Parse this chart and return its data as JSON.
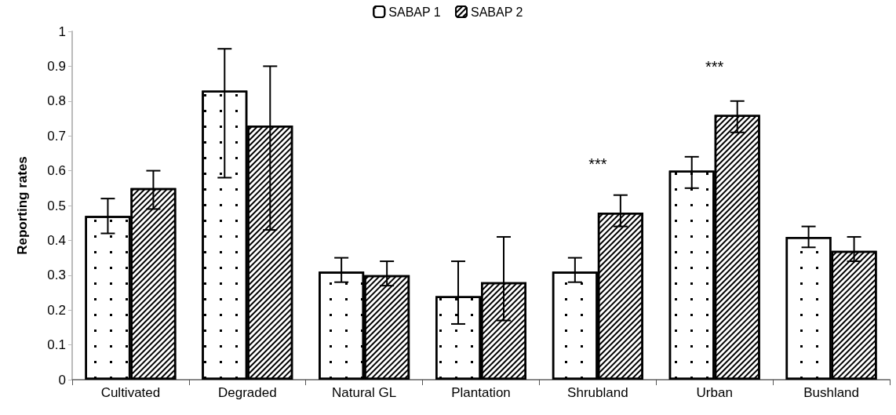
{
  "chart_data": {
    "type": "bar",
    "ylabel": "Reporting rates",
    "categories": [
      "Cultivated",
      "Degraded",
      "Natural GL",
      "Plantation",
      "Shrubland",
      "Urban",
      "Bushland"
    ],
    "series": [
      {
        "name": "SABAP 1",
        "color": "#ffffff",
        "values": [
          0.47,
          0.83,
          0.31,
          0.24,
          0.31,
          0.6,
          0.41
        ],
        "errors": [
          [
            0.42,
            0.52
          ],
          [
            0.58,
            0.95
          ],
          [
            0.28,
            0.35
          ],
          [
            0.16,
            0.34
          ],
          [
            0.28,
            0.35
          ],
          [
            0.55,
            0.64
          ],
          [
            0.38,
            0.44
          ]
        ]
      },
      {
        "name": "SABAP 2",
        "color": "#ffffff",
        "values": [
          0.55,
          0.73,
          0.3,
          0.28,
          0.48,
          0.76,
          0.37
        ],
        "errors": [
          [
            0.49,
            0.6
          ],
          [
            0.43,
            0.9
          ],
          [
            0.27,
            0.34
          ],
          [
            0.17,
            0.41
          ],
          [
            0.44,
            0.53
          ],
          [
            0.71,
            0.8
          ],
          [
            0.34,
            0.41
          ]
        ]
      }
    ],
    "annotations": [
      {
        "text": "***",
        "x": "Shrubland",
        "y": 0.48
      },
      {
        "text": "***",
        "x": "Urban",
        "y": 0.76
      }
    ],
    "ylim": [
      0,
      1
    ],
    "yticks": [
      0,
      0.1,
      0.2,
      0.3,
      0.4,
      0.5,
      0.6,
      0.7,
      0.8,
      0.9,
      1
    ],
    "grid": false,
    "legend": "top"
  }
}
